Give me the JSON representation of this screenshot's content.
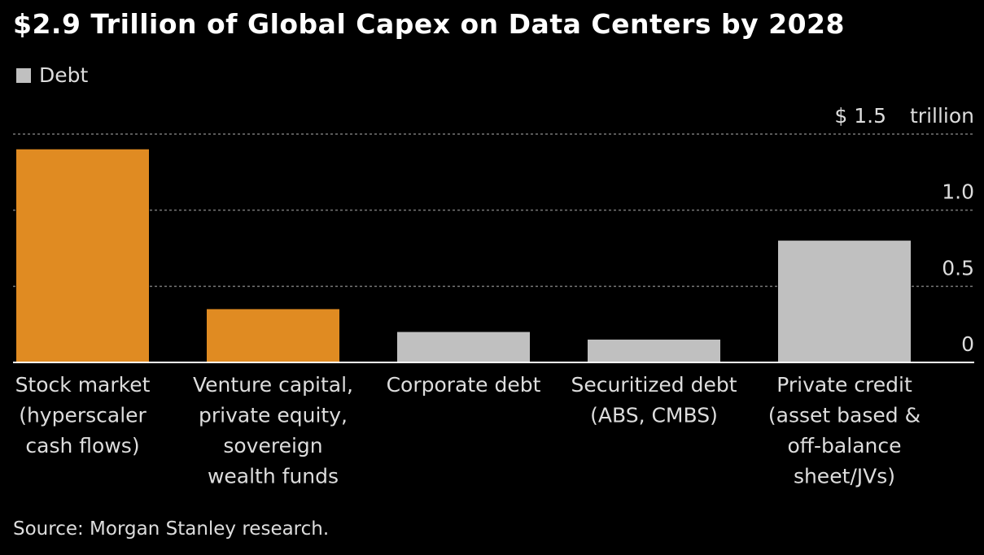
{
  "chart_data": {
    "type": "bar",
    "title": "$2.9 Trillion of Global Capex on Data Centers by 2028",
    "legend": [
      {
        "label": "Debt",
        "color": "#c0c0c0"
      }
    ],
    "categories": [
      [
        "Stock market",
        "(hyperscaler",
        "cash flows)"
      ],
      [
        "Venture capital,",
        "private equity,",
        "sovereign",
        "wealth funds"
      ],
      [
        "Corporate debt"
      ],
      [
        "Securitized debt",
        "(ABS, CMBS)"
      ],
      [
        "Private credit",
        "(asset based &",
        "off-balance",
        "sheet/JVs)"
      ]
    ],
    "values": [
      1.4,
      0.35,
      0.2,
      0.15,
      0.8
    ],
    "colors": [
      "#e08b22",
      "#e08b22",
      "#c0c0c0",
      "#c0c0c0",
      "#c0c0c0"
    ],
    "is_debt": [
      false,
      false,
      true,
      true,
      true
    ],
    "ylim": [
      0,
      1.5
    ],
    "yticks": [
      {
        "value": 0,
        "label": "0"
      },
      {
        "value": 0.5,
        "label": "0.5"
      },
      {
        "value": 1.0,
        "label": "1.0"
      },
      {
        "value": 1.5,
        "label": "$ 1.5"
      }
    ],
    "yunit": "trillion",
    "grid": true,
    "source": "Source: Morgan Stanley research."
  }
}
